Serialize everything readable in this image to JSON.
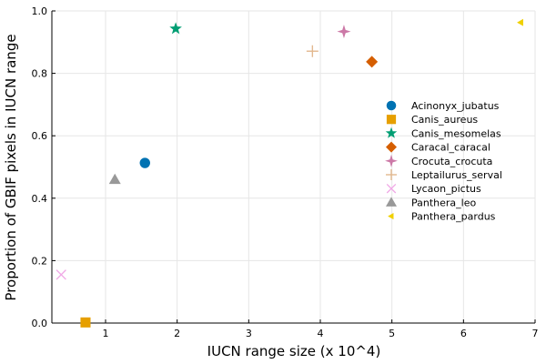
{
  "chart_data": {
    "type": "scatter",
    "title": "",
    "xlabel": "IUCN range size (x 10^4)",
    "ylabel": "Proportion of GBIF pixels in IUCN range",
    "xlim": [
      0.25,
      7.0
    ],
    "ylim": [
      0.0,
      1.0
    ],
    "xticks": [
      {
        "value": 1,
        "label": "1"
      },
      {
        "value": 2,
        "label": "2"
      },
      {
        "value": 3,
        "label": "3"
      },
      {
        "value": 4,
        "label": "4"
      },
      {
        "value": 5,
        "label": "5"
      },
      {
        "value": 6,
        "label": "6"
      },
      {
        "value": 7,
        "label": "7"
      }
    ],
    "yticks": [
      {
        "value": 0.0,
        "label": "0.0"
      },
      {
        "value": 0.2,
        "label": "0.2"
      },
      {
        "value": 0.4,
        "label": "0.4"
      },
      {
        "value": 0.6,
        "label": "0.6"
      },
      {
        "value": 0.8,
        "label": "0.8"
      },
      {
        "value": 1.0,
        "label": "1.0"
      }
    ],
    "grid": true,
    "legend_position": "right",
    "series": [
      {
        "name": "Acinonyx_jubatus",
        "marker": "circle",
        "color": "#0072b2",
        "x": 1.55,
        "y": 0.513
      },
      {
        "name": "Canis_aureus",
        "marker": "square",
        "color": "#e69f00",
        "x": 0.72,
        "y": 0.002
      },
      {
        "name": "Canis_mesomelas",
        "marker": "star5",
        "color": "#009e73",
        "x": 1.98,
        "y": 0.943
      },
      {
        "name": "Caracal_caracal",
        "marker": "diamond",
        "color": "#d55e00",
        "x": 4.72,
        "y": 0.837
      },
      {
        "name": "Crocuta_crocuta",
        "marker": "star4",
        "color": "#cc79a7",
        "x": 4.33,
        "y": 0.934
      },
      {
        "name": "Leptailurus_serval",
        "marker": "cross",
        "color": "#e2b88f",
        "x": 3.89,
        "y": 0.871
      },
      {
        "name": "Lycaon_pictus",
        "marker": "xcross",
        "color": "#f0a8e6",
        "x": 0.38,
        "y": 0.155
      },
      {
        "name": "Panthera_leo",
        "marker": "utriangle",
        "color": "#999999",
        "x": 1.13,
        "y": 0.46
      },
      {
        "name": "Panthera_pardus",
        "marker": "ltriangle",
        "color": "#f0d000",
        "x": 6.8,
        "y": 0.963
      }
    ]
  }
}
